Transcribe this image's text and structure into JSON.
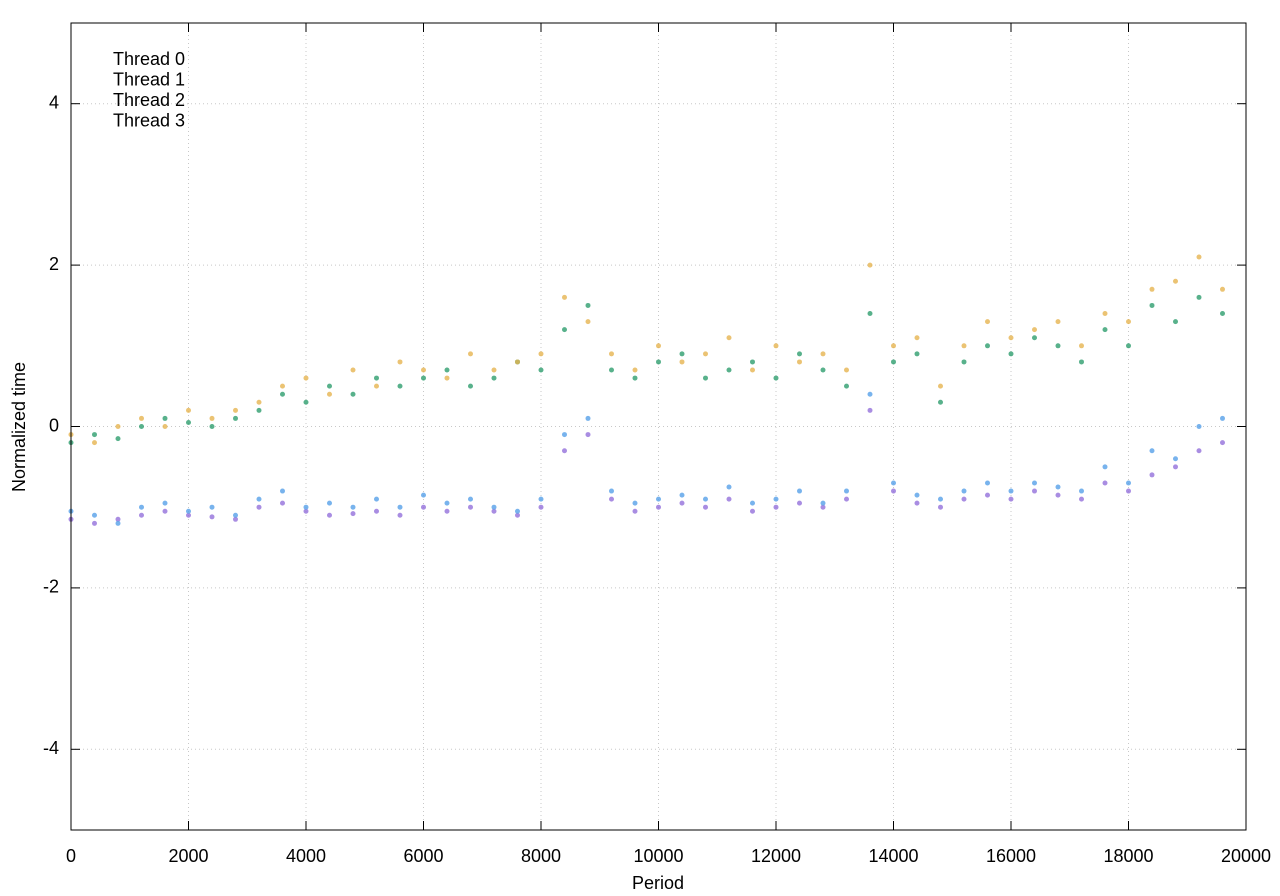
{
  "chart_data": {
    "type": "scatter",
    "x_label": "Period",
    "y_label": "Normalized time",
    "xlim": [
      0,
      20000
    ],
    "ylim": [
      -5,
      5
    ],
    "xticks": [
      0,
      2000,
      4000,
      6000,
      8000,
      10000,
      12000,
      14000,
      16000,
      18000,
      20000
    ],
    "yticks": [
      -4,
      -2,
      0,
      2,
      4
    ],
    "grid": true,
    "legend": "top-left",
    "x": [
      0,
      400,
      800,
      1200,
      1600,
      2000,
      2400,
      2800,
      3200,
      3600,
      4000,
      4400,
      4800,
      5200,
      5600,
      6000,
      6400,
      6800,
      7200,
      7600,
      8000,
      8400,
      8800,
      9200,
      9600,
      10000,
      10400,
      10800,
      11200,
      11600,
      12000,
      12400,
      12800,
      13200,
      13600,
      14000,
      14400,
      14800,
      15200,
      15600,
      16000,
      16400,
      16800,
      17200,
      17600,
      18000,
      18400,
      18800,
      19200,
      19600
    ],
    "series": [
      {
        "name": "Thread 0",
        "color": "#9370db",
        "values": [
          -1.15,
          -1.2,
          -1.15,
          -1.1,
          -1.05,
          -1.1,
          -1.12,
          -1.15,
          -1.0,
          -0.95,
          -1.05,
          -1.1,
          -1.08,
          -1.05,
          -1.1,
          -1.0,
          -1.05,
          -1.0,
          -1.05,
          -1.1,
          -1.0,
          -0.3,
          -0.1,
          -0.9,
          -1.05,
          -1.0,
          -0.95,
          -1.0,
          -0.9,
          -1.05,
          -1.0,
          -0.95,
          -1.0,
          -0.9,
          0.2,
          -0.8,
          -0.95,
          -1.0,
          -0.9,
          -0.85,
          -0.9,
          -0.8,
          -0.85,
          -0.9,
          -0.7,
          -0.8,
          -0.6,
          -0.5,
          -0.3,
          -0.2
        ]
      },
      {
        "name": "Thread 1",
        "color": "#2e9e6e",
        "values": [
          -0.2,
          -0.1,
          -0.15,
          0.0,
          0.1,
          0.05,
          0.0,
          0.1,
          0.2,
          0.4,
          0.3,
          0.5,
          0.4,
          0.6,
          0.5,
          0.6,
          0.7,
          0.5,
          0.6,
          0.8,
          0.7,
          1.2,
          1.5,
          0.7,
          0.6,
          0.8,
          0.9,
          0.6,
          0.7,
          0.8,
          0.6,
          0.9,
          0.7,
          0.5,
          1.4,
          0.8,
          0.9,
          0.3,
          0.8,
          1.0,
          0.9,
          1.1,
          1.0,
          0.8,
          1.2,
          1.0,
          1.5,
          1.3,
          1.6,
          1.4
        ]
      },
      {
        "name": "Thread 2",
        "color": "#56a0e9",
        "values": [
          -1.05,
          -1.1,
          -1.2,
          -1.0,
          -0.95,
          -1.05,
          -1.0,
          -1.1,
          -0.9,
          -0.8,
          -1.0,
          -0.95,
          -1.0,
          -0.9,
          -1.0,
          -0.85,
          -0.95,
          -0.9,
          -1.0,
          -1.05,
          -0.9,
          -0.1,
          0.1,
          -0.8,
          -0.95,
          -0.9,
          -0.85,
          -0.9,
          -0.75,
          -0.95,
          -0.9,
          -0.8,
          -0.95,
          -0.8,
          0.4,
          -0.7,
          -0.85,
          -0.9,
          -0.8,
          -0.7,
          -0.8,
          -0.7,
          -0.75,
          -0.8,
          -0.5,
          -0.7,
          -0.3,
          -0.4,
          0.0,
          0.1
        ]
      },
      {
        "name": "Thread 3",
        "color": "#e6b450",
        "values": [
          -0.1,
          -0.2,
          0.0,
          0.1,
          0.0,
          0.2,
          0.1,
          0.2,
          0.3,
          0.5,
          0.6,
          0.4,
          0.7,
          0.5,
          0.8,
          0.7,
          0.6,
          0.9,
          0.7,
          0.8,
          0.9,
          1.6,
          1.3,
          0.9,
          0.7,
          1.0,
          0.8,
          0.9,
          1.1,
          0.7,
          1.0,
          0.8,
          0.9,
          0.7,
          2.0,
          1.0,
          1.1,
          0.5,
          1.0,
          1.3,
          1.1,
          1.2,
          1.3,
          1.0,
          1.4,
          1.3,
          1.7,
          1.8,
          2.1,
          1.7
        ]
      }
    ]
  }
}
